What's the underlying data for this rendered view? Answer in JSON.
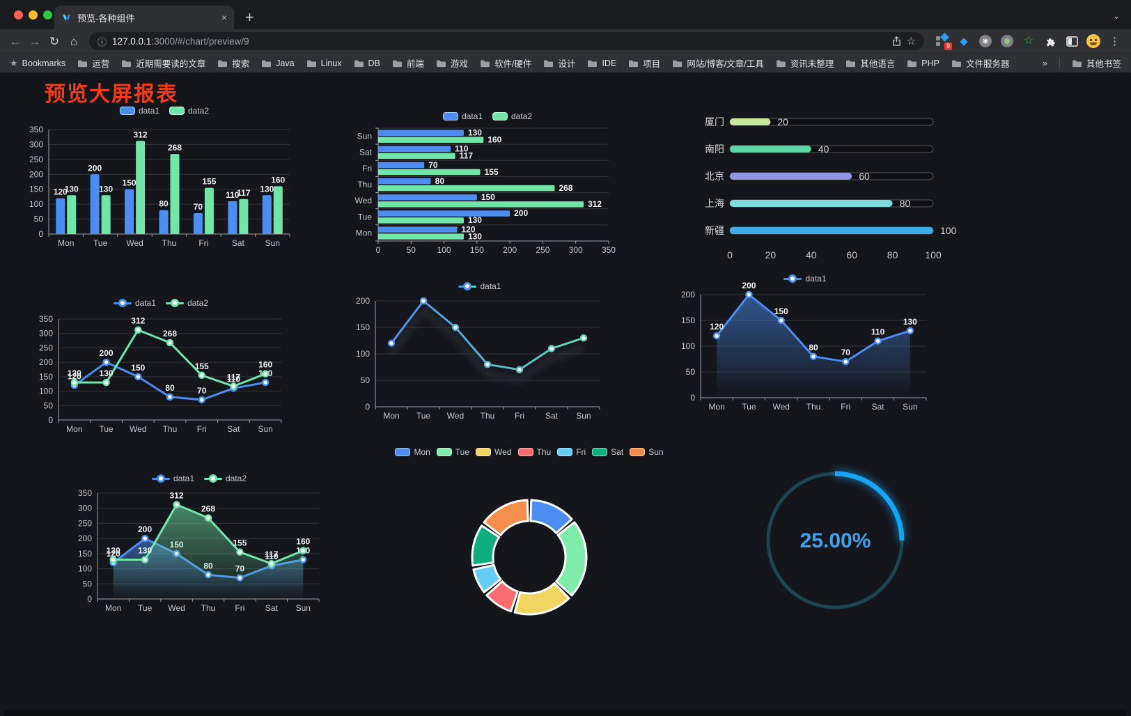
{
  "browser": {
    "tab": {
      "title": "预览-各种组件",
      "close": "×",
      "new_tab": "+"
    },
    "url_host": "127.0.0.1",
    "url_rest": ":3000/#/chart/preview/9",
    "bookmarks_label": "Bookmarks",
    "bookmark_folders": [
      "运营",
      "近期需要读的文章",
      "搜索",
      "Java",
      "Linux",
      "DB",
      "前端",
      "游戏",
      "软件/硬件",
      "设计",
      "IDE",
      "项目",
      "网站/博客/文章/工具",
      "资讯未整理",
      "其他语言",
      "PHP",
      "文件服务器"
    ],
    "bookmarks_overflow": "»",
    "other_bookmarks": "其他书签",
    "extension_badge": "9"
  },
  "page": {
    "title": "预览大屏报表"
  },
  "colors": {
    "accent_blue": "#4B8DF1",
    "accent_green": "#72E6A9",
    "title_red": "#f43a17",
    "grid": "rgba(255,255,255,.13)",
    "axis": "#9aa0a8",
    "tick_text": "#c2c6ce",
    "value_text": "#eceef1"
  },
  "chart_data": [
    {
      "id": "grouped-bar",
      "type": "bar",
      "categories": [
        "Mon",
        "Tue",
        "Wed",
        "Thu",
        "Fri",
        "Sat",
        "Sun"
      ],
      "series": [
        {
          "name": "data1",
          "color": "#4B8DF1",
          "values": [
            120,
            200,
            150,
            80,
            70,
            110,
            130
          ]
        },
        {
          "name": "data2",
          "color": "#72E6A9",
          "values": [
            130,
            130,
            312,
            268,
            155,
            117,
            160
          ]
        }
      ],
      "ylim": [
        0,
        350
      ],
      "ytick_step": 50,
      "legend_position": "top",
      "grid": true,
      "labels": true
    },
    {
      "id": "horizontal-bar",
      "type": "bar-horizontal",
      "categories": [
        "Mon",
        "Tue",
        "Wed",
        "Thu",
        "Fri",
        "Sat",
        "Sun"
      ],
      "series": [
        {
          "name": "data1",
          "color": "#4B8DF1",
          "values": [
            120,
            200,
            150,
            80,
            70,
            110,
            130
          ]
        },
        {
          "name": "data2",
          "color": "#72E6A9",
          "values": [
            130,
            130,
            312,
            268,
            155,
            117,
            160
          ]
        }
      ],
      "xlim": [
        0,
        350
      ],
      "xtick_step": 50,
      "legend_position": "top",
      "labels": true
    },
    {
      "id": "city-progress",
      "type": "bar-horizontal",
      "items": [
        {
          "label": "厦门",
          "value": 20,
          "color": "#C7E79C"
        },
        {
          "label": "南阳",
          "value": 40,
          "color": "#5DD6A6"
        },
        {
          "label": "北京",
          "value": 60,
          "color": "#9196E2"
        },
        {
          "label": "上海",
          "value": 80,
          "color": "#7EDCDC"
        },
        {
          "label": "新疆",
          "value": 100,
          "color": "#3CABE6"
        }
      ],
      "xlim": [
        0,
        100
      ],
      "xtick_step": 20
    },
    {
      "id": "line-two-series",
      "type": "line",
      "categories": [
        "Mon",
        "Tue",
        "Wed",
        "Thu",
        "Fri",
        "Sat",
        "Sun"
      ],
      "series": [
        {
          "name": "data1",
          "color": "#4B8DF1",
          "values": [
            120,
            200,
            150,
            80,
            70,
            110,
            130
          ]
        },
        {
          "name": "data2",
          "color": "#72E6A9",
          "values": [
            130,
            130,
            312,
            268,
            155,
            117,
            160
          ]
        }
      ],
      "ylim": [
        0,
        350
      ],
      "ytick_step": 50,
      "labels": true,
      "legend_position": "top"
    },
    {
      "id": "gradient-line",
      "type": "line",
      "categories": [
        "Mon",
        "Tue",
        "Wed",
        "Thu",
        "Fri",
        "Sat",
        "Sun"
      ],
      "series": [
        {
          "name": "data1",
          "gradient": [
            "#4B8DF1",
            "#63D6B2"
          ],
          "values": [
            120,
            200,
            150,
            80,
            70,
            110,
            130
          ]
        }
      ],
      "ylim": [
        0,
        200
      ],
      "ytick_step": 50,
      "labels": false,
      "shadow": true,
      "legend_position": "top"
    },
    {
      "id": "area-single",
      "type": "area",
      "categories": [
        "Mon",
        "Tue",
        "Wed",
        "Thu",
        "Fri",
        "Sat",
        "Sun"
      ],
      "series": [
        {
          "name": "data1",
          "color": "#4B8DF1",
          "values": [
            120,
            200,
            150,
            80,
            70,
            110,
            130
          ]
        }
      ],
      "ylim": [
        0,
        200
      ],
      "ytick_step": 50,
      "labels": true,
      "legend_position": "top"
    },
    {
      "id": "area-two-series",
      "type": "area",
      "categories": [
        "Mon",
        "Tue",
        "Wed",
        "Thu",
        "Fri",
        "Sat",
        "Sun"
      ],
      "series": [
        {
          "name": "data1",
          "color": "#4B8DF1",
          "values": [
            120,
            200,
            150,
            80,
            70,
            110,
            130
          ]
        },
        {
          "name": "data2",
          "color": "#72E6A9",
          "values": [
            130,
            130,
            312,
            268,
            155,
            117,
            160
          ]
        }
      ],
      "ylim": [
        0,
        350
      ],
      "ytick_step": 50,
      "labels": true,
      "legend_position": "top"
    },
    {
      "id": "weekday-donut",
      "type": "pie",
      "categories": [
        "Mon",
        "Tue",
        "Wed",
        "Thu",
        "Fri",
        "Sat",
        "Sun"
      ],
      "values": [
        120,
        200,
        150,
        80,
        70,
        110,
        130
      ],
      "colors": [
        "#4B8DF1",
        "#7FECA9",
        "#F2D560",
        "#F96C6E",
        "#63CDF6",
        "#0EAE7F",
        "#F68F4B"
      ],
      "legend_position": "top"
    },
    {
      "id": "percent-gauge",
      "type": "gauge",
      "value": 25,
      "display": "25.00%",
      "arc_color": "#16A5F5",
      "track_color": "#1C4652",
      "text_color": "#3FA0EC"
    }
  ]
}
